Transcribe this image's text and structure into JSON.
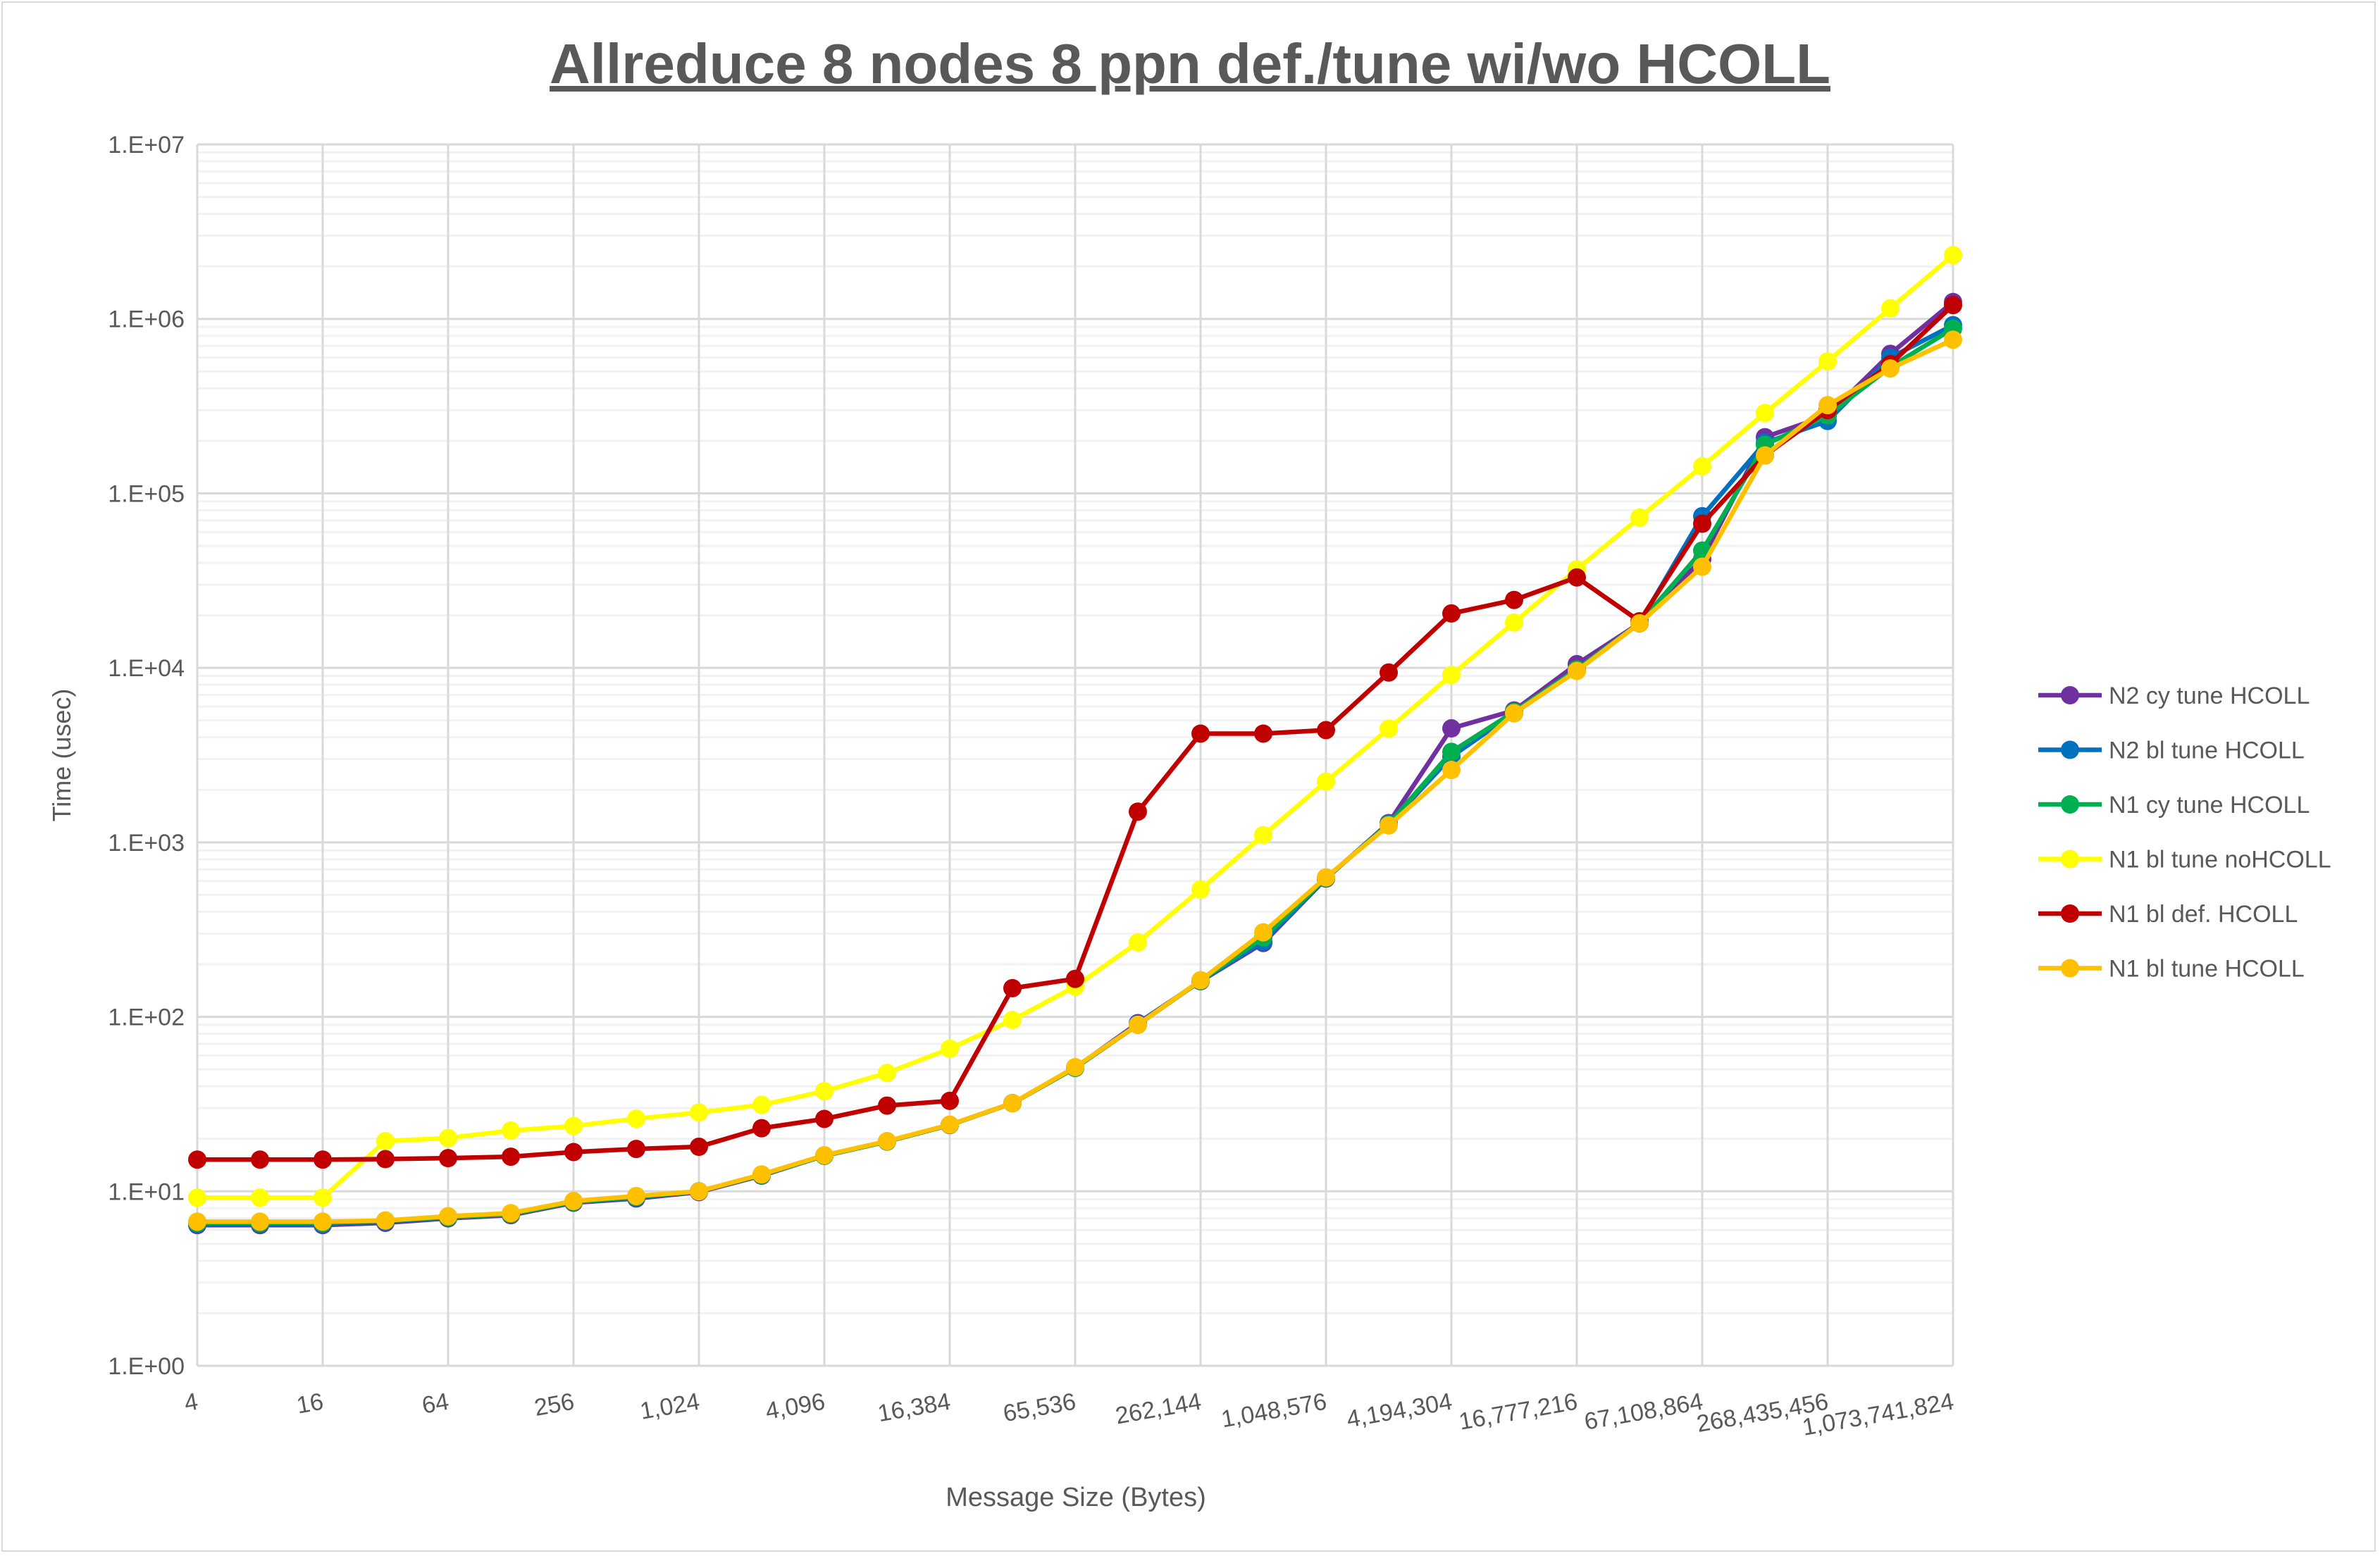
{
  "chart_data": {
    "type": "line",
    "title": "Allreduce 8 nodes 8 ppn def./tune wi/wo HCOLL",
    "xlabel": "Message Size (Bytes)",
    "ylabel": "Time (usec)",
    "x_scale": "log2",
    "y_scale": "log10",
    "ylim": [
      1,
      10000000
    ],
    "y_tick_labels": [
      "1.E+00",
      "1.E+01",
      "1.E+02",
      "1.E+03",
      "1.E+04",
      "1.E+05",
      "1.E+06",
      "1.E+07"
    ],
    "x": [
      4,
      8,
      16,
      32,
      64,
      128,
      256,
      512,
      1024,
      2048,
      4096,
      8192,
      16384,
      32768,
      65536,
      131072,
      262144,
      524288,
      1048576,
      2097152,
      4194304,
      8388608,
      16777216,
      33554432,
      67108864,
      134217728,
      268435456,
      536870912,
      1073741824
    ],
    "x_tick_labels": [
      "4",
      "16",
      "64",
      "256",
      "1,024",
      "4,096",
      "16,384",
      "65,536",
      "262,144",
      "1,048,576",
      "4,194,304",
      "16,777,216",
      "67,108,864",
      "268,435,456",
      "1,073,741,824"
    ],
    "grid": {
      "major": true,
      "minor": true
    },
    "legend_position": "right",
    "series": [
      {
        "name": "N2 cy tune HCOLL",
        "color": "#7030A0",
        "values": [
          6.4,
          6.4,
          6.4,
          6.6,
          7.0,
          7.3,
          8.6,
          9.1,
          9.9,
          12.3,
          16,
          19.3,
          24,
          32,
          51,
          92,
          160,
          265,
          620,
          1290,
          4500,
          5700,
          10500,
          18000,
          42000,
          210000,
          280000,
          630000,
          1250000
        ]
      },
      {
        "name": "N2 bl tune HCOLL",
        "color": "#0070C0",
        "values": [
          6.5,
          6.5,
          6.5,
          6.7,
          7.1,
          7.4,
          8.7,
          9.2,
          10,
          12.4,
          16,
          19.3,
          24,
          32,
          51,
          91,
          161,
          270,
          625,
          1270,
          3100,
          5500,
          9800,
          18000,
          74000,
          195000,
          260000,
          600000,
          920000
        ]
      },
      {
        "name": "N1 cy tune HCOLL",
        "color": "#00B050",
        "values": [
          6.6,
          6.6,
          6.6,
          6.8,
          7.1,
          7.4,
          8.7,
          9.3,
          10,
          12.4,
          16,
          19.3,
          24,
          32,
          51,
          90,
          161,
          285,
          625,
          1270,
          3300,
          5600,
          9800,
          18000,
          47000,
          190000,
          280000,
          530000,
          880000
        ]
      },
      {
        "name": "N1 bl tune noHCOLL",
        "color": "#FFFF00",
        "values": [
          9.2,
          9.2,
          9.2,
          19.4,
          20.2,
          22.3,
          23.7,
          26.1,
          28.3,
          31.3,
          37.5,
          47.7,
          65.7,
          96,
          149,
          267,
          537,
          1100,
          2230,
          4480,
          9100,
          18200,
          36700,
          72700,
          143000,
          289000,
          571000,
          1150000,
          2320000
        ]
      },
      {
        "name": "N1 bl def. HCOLL",
        "color": "#C00000",
        "values": [
          15.2,
          15.2,
          15.2,
          15.3,
          15.5,
          15.8,
          16.8,
          17.5,
          18,
          23,
          26,
          31,
          33,
          146,
          165,
          1500,
          4200,
          4200,
          4400,
          9400,
          20500,
          24500,
          33000,
          18500,
          67000,
          165000,
          300000,
          550000,
          1200000
        ]
      },
      {
        "name": "N1 bl tune HCOLL",
        "color": "#FFC000",
        "values": [
          6.7,
          6.7,
          6.7,
          6.8,
          7.2,
          7.5,
          8.8,
          9.4,
          10,
          12.5,
          16.1,
          19.4,
          24.1,
          32,
          51.5,
          90,
          162,
          305,
          630,
          1250,
          2600,
          5500,
          9600,
          18000,
          38000,
          165000,
          320000,
          520000,
          760000
        ]
      }
    ]
  }
}
